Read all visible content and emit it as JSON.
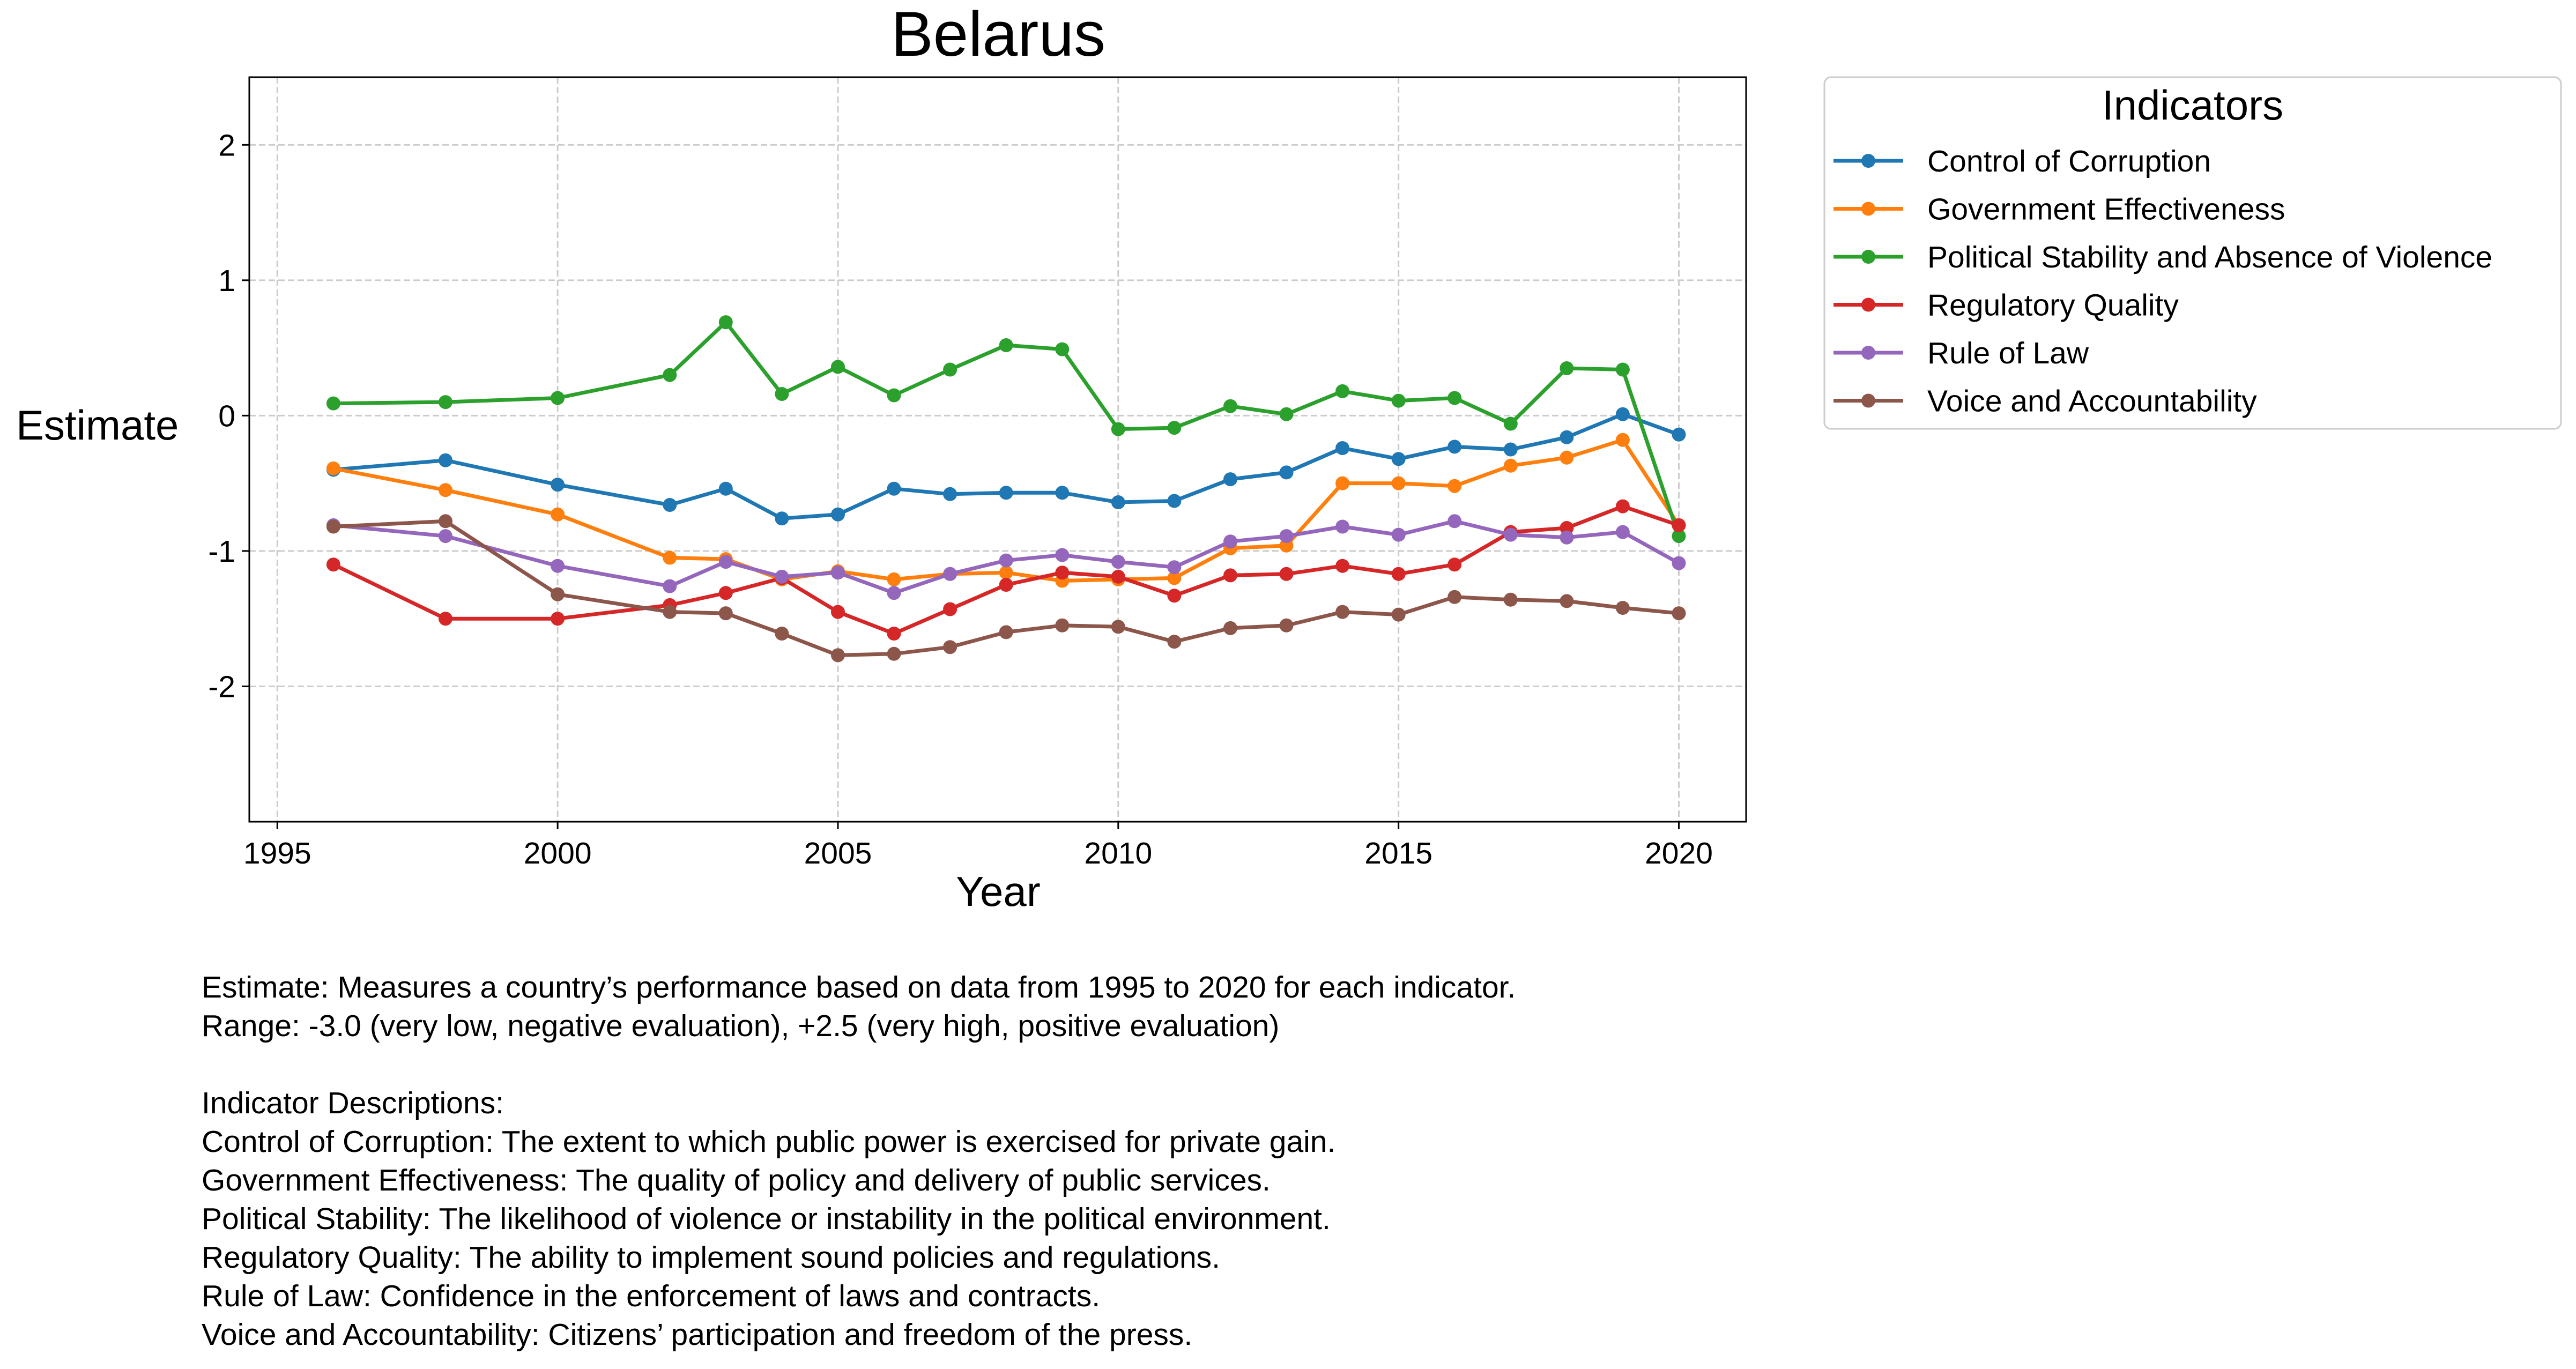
{
  "chart_data": {
    "type": "line",
    "title": "Belarus",
    "xlabel": "Year",
    "ylabel": "Estimate",
    "xlim": [
      1994.5,
      2021.2
    ],
    "ylim": [
      -3.0,
      2.5
    ],
    "xticks": [
      1995,
      2000,
      2005,
      2010,
      2015,
      2020
    ],
    "xtick_labels": [
      "1995",
      "2000",
      "2005",
      "2010",
      "2015",
      "2020"
    ],
    "yticks": [
      2,
      1,
      0,
      -1,
      -2
    ],
    "ytick_labels": [
      "2",
      "1",
      "0",
      "-1",
      "-2"
    ],
    "grid": true,
    "legend_title": "Indicators",
    "legend_placement": "outside top-right",
    "x": [
      1996,
      1998,
      2000,
      2002,
      2003,
      2004,
      2005,
      2006,
      2007,
      2008,
      2009,
      2010,
      2011,
      2012,
      2013,
      2014,
      2015,
      2016,
      2017,
      2018,
      2019,
      2020
    ],
    "series": [
      {
        "name": "Control of Corruption",
        "color": "#1f77b4",
        "values": [
          -0.4,
          -0.33,
          -0.51,
          -0.66,
          -0.54,
          -0.76,
          -0.73,
          -0.54,
          -0.58,
          -0.57,
          -0.57,
          -0.64,
          -0.63,
          -0.47,
          -0.42,
          -0.24,
          -0.32,
          -0.23,
          -0.25,
          -0.16,
          0.01,
          -0.14
        ]
      },
      {
        "name": "Government Effectiveness",
        "color": "#ff7f0e",
        "values": [
          -0.39,
          -0.55,
          -0.73,
          -1.05,
          -1.06,
          -1.21,
          -1.15,
          -1.21,
          -1.17,
          -1.16,
          -1.22,
          -1.21,
          -1.2,
          -0.98,
          -0.96,
          -0.5,
          -0.5,
          -0.52,
          -0.37,
          -0.31,
          -0.18,
          -0.81
        ]
      },
      {
        "name": "Political Stability and Absence of Violence",
        "color": "#2ca02c",
        "values": [
          0.09,
          0.1,
          0.13,
          0.3,
          0.69,
          0.16,
          0.36,
          0.15,
          0.34,
          0.52,
          0.49,
          -0.1,
          -0.09,
          0.07,
          0.01,
          0.18,
          0.11,
          0.13,
          -0.06,
          0.35,
          0.34,
          -0.89
        ]
      },
      {
        "name": "Regulatory Quality",
        "color": "#d62728",
        "values": [
          -1.1,
          -1.5,
          -1.5,
          -1.4,
          -1.31,
          -1.2,
          -1.45,
          -1.61,
          -1.43,
          -1.25,
          -1.16,
          -1.19,
          -1.33,
          -1.18,
          -1.17,
          -1.11,
          -1.17,
          -1.1,
          -0.86,
          -0.83,
          -0.67,
          -0.81
        ]
      },
      {
        "name": "Rule of Law",
        "color": "#9467bd",
        "values": [
          -0.81,
          -0.89,
          -1.11,
          -1.26,
          -1.08,
          -1.19,
          -1.16,
          -1.31,
          -1.17,
          -1.07,
          -1.03,
          -1.08,
          -1.12,
          -0.93,
          -0.89,
          -0.82,
          -0.88,
          -0.78,
          -0.88,
          -0.9,
          -0.86,
          -1.09
        ]
      },
      {
        "name": "Voice and Accountability",
        "color": "#8c564b",
        "values": [
          -0.82,
          -0.78,
          -1.32,
          -1.45,
          -1.46,
          -1.61,
          -1.77,
          -1.76,
          -1.71,
          -1.6,
          -1.55,
          -1.56,
          -1.67,
          -1.57,
          -1.55,
          -1.45,
          -1.47,
          -1.34,
          -1.36,
          -1.37,
          -1.42,
          -1.46
        ]
      }
    ]
  },
  "notes": {
    "estimate_line": "Estimate: Measures a country’s performance based on data from 1995 to 2020 for each indicator.",
    "range_line": "Range: -3.0 (very low, negative evaluation), +2.5 (very high, positive evaluation)",
    "descriptions_heading": "Indicator Descriptions:",
    "descriptions": [
      "Control of Corruption: The extent to which public power is exercised for private gain.",
      "Government Effectiveness: The quality of policy and delivery of public services.",
      "Political Stability: The likelihood of violence or instability in the political environment.",
      "Regulatory Quality: The ability to implement sound policies and regulations.",
      "Rule of Law: Confidence in the enforcement of laws and contracts.",
      "Voice and Accountability: Citizens’ participation and freedom of the press."
    ]
  }
}
